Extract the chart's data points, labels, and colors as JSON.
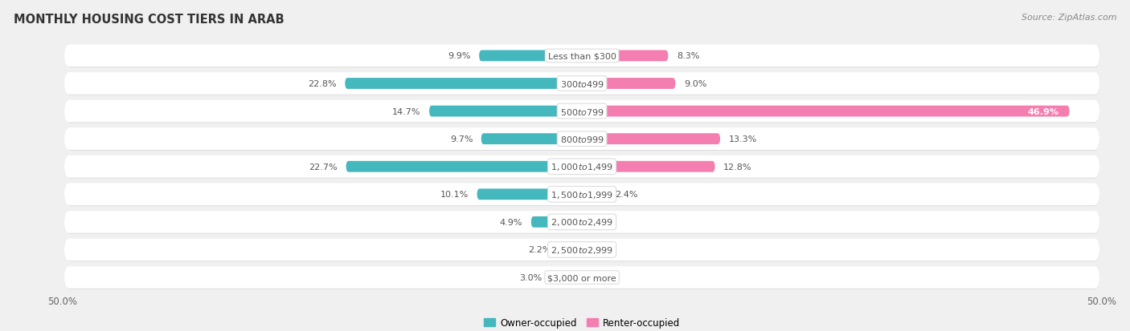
{
  "title": "MONTHLY HOUSING COST TIERS IN ARAB",
  "source": "Source: ZipAtlas.com",
  "categories": [
    "Less than $300",
    "$300 to $499",
    "$500 to $799",
    "$800 to $999",
    "$1,000 to $1,499",
    "$1,500 to $1,999",
    "$2,000 to $2,499",
    "$2,500 to $2,999",
    "$3,000 or more"
  ],
  "owner_values": [
    9.9,
    22.8,
    14.7,
    9.7,
    22.7,
    10.1,
    4.9,
    2.2,
    3.0
  ],
  "renter_values": [
    8.3,
    9.0,
    46.9,
    13.3,
    12.8,
    2.4,
    0.0,
    0.0,
    0.0
  ],
  "owner_color": "#45b8be",
  "renter_color": "#f47eb0",
  "renter_color_light": "#f9c5d8",
  "owner_color_light": "#8dd5d8",
  "axis_limit": 50.0,
  "bg_color": "#f0f0f0",
  "row_bg": "#ffffff",
  "row_border": "#d5d5d5",
  "label_color": "#555555",
  "title_color": "#333333",
  "source_color": "#888888"
}
